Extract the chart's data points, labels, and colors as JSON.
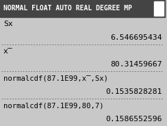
{
  "header_text": "NORMAL FLOAT AUTO REAL DEGREE MP",
  "header_bg": "#444444",
  "header_fg": "#ffffff",
  "body_bg": "#c8c8c8",
  "body_fg": "#000000",
  "corner_icon_color": "#ffffff",
  "dot_line_color": "#777777",
  "font_size_header": 7.0,
  "font_size_body": 8.2,
  "row_labels": [
    "Sx",
    "",
    "x̅",
    "",
    "normalcdf(87.1E99,x̅,Sx)",
    "",
    "normalcdf(87.1E99,80,7)",
    ""
  ],
  "row_values": [
    "",
    "6.546695434",
    "",
    "80.31459667",
    "",
    "0.1535828281",
    "",
    "0.1586552596"
  ],
  "separator_after": [
    1,
    3,
    5,
    7
  ]
}
